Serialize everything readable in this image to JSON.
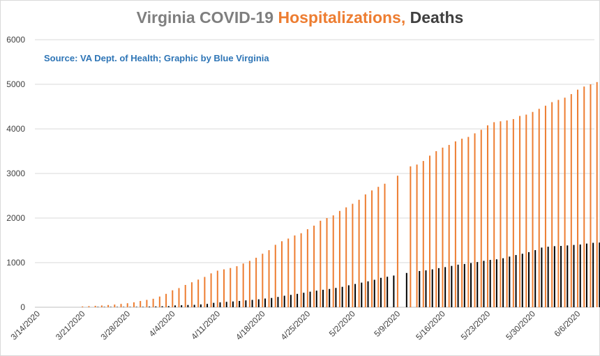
{
  "title_parts": {
    "part1": "Virginia COVID-19 ",
    "part2": "Hospitalizations,",
    "part3": " Deaths"
  },
  "subtitle": "Source: VA Dept. of Health; Graphic by Blue Virginia",
  "colors": {
    "title_gray": "#7f7f7f",
    "title_orange": "#ed7d31",
    "title_dark": "#404040",
    "subtitle_blue": "#2e75b6",
    "hospitalizations": "#ed7d31",
    "deaths": "#000000",
    "grid": "#d9d9d9"
  },
  "chart_data": {
    "type": "bar",
    "title": "Virginia COVID-19 Hospitalizations, Deaths",
    "subtitle": "Source: VA Dept. of Health; Graphic by Blue Virginia",
    "xlabel": "",
    "ylabel": "",
    "ylim": [
      0,
      6000
    ],
    "yticks": [
      0,
      1000,
      2000,
      3000,
      4000,
      5000,
      6000
    ],
    "grid": true,
    "legend": "none",
    "x_start": "2020-03-14",
    "x_end": "2020-06-08",
    "xtick_labels": [
      "3/14/2020",
      "3/21/2020",
      "3/28/2020",
      "4/4/2020",
      "4/11/2020",
      "4/18/2020",
      "4/25/2020",
      "5/2/2020",
      "5/9/2020",
      "5/16/2020",
      "5/23/2020",
      "5/30/2020",
      "6/6/2020"
    ],
    "series": [
      {
        "color": "#ed7d31",
        "points": [
          [
            "2020-03-21",
            18
          ],
          [
            "2020-03-22",
            25
          ],
          [
            "2020-03-23",
            32
          ],
          [
            "2020-03-24",
            40
          ],
          [
            "2020-03-25",
            50
          ],
          [
            "2020-03-26",
            60
          ],
          [
            "2020-03-27",
            75
          ],
          [
            "2020-03-28",
            90
          ],
          [
            "2020-03-29",
            110
          ],
          [
            "2020-03-30",
            140
          ],
          [
            "2020-03-31",
            165
          ],
          [
            "2020-04-01",
            190
          ],
          [
            "2020-04-02",
            240
          ],
          [
            "2020-04-03",
            300
          ],
          [
            "2020-04-04",
            380
          ],
          [
            "2020-04-05",
            430
          ],
          [
            "2020-04-06",
            500
          ],
          [
            "2020-04-07",
            560
          ],
          [
            "2020-04-08",
            620
          ],
          [
            "2020-04-09",
            680
          ],
          [
            "2020-04-10",
            760
          ],
          [
            "2020-04-11",
            820
          ],
          [
            "2020-04-12",
            850
          ],
          [
            "2020-04-13",
            880
          ],
          [
            "2020-04-14",
            920
          ],
          [
            "2020-04-15",
            980
          ],
          [
            "2020-04-16",
            1040
          ],
          [
            "2020-04-17",
            1110
          ],
          [
            "2020-04-18",
            1200
          ],
          [
            "2020-04-19",
            1280
          ],
          [
            "2020-04-20",
            1400
          ],
          [
            "2020-04-21",
            1480
          ],
          [
            "2020-04-22",
            1540
          ],
          [
            "2020-04-23",
            1610
          ],
          [
            "2020-04-24",
            1660
          ],
          [
            "2020-04-25",
            1750
          ],
          [
            "2020-04-26",
            1830
          ],
          [
            "2020-04-27",
            1940
          ],
          [
            "2020-04-28",
            2000
          ],
          [
            "2020-04-29",
            2060
          ],
          [
            "2020-04-30",
            2160
          ],
          [
            "2020-05-01",
            2240
          ],
          [
            "2020-05-02",
            2320
          ],
          [
            "2020-05-03",
            2410
          ],
          [
            "2020-05-04",
            2530
          ],
          [
            "2020-05-05",
            2620
          ],
          [
            "2020-05-06",
            2700
          ],
          [
            "2020-05-07",
            2770
          ],
          [
            "2020-05-09",
            2950
          ],
          [
            "2020-05-11",
            3160
          ],
          [
            "2020-05-12",
            3200
          ],
          [
            "2020-05-13",
            3280
          ],
          [
            "2020-05-14",
            3400
          ],
          [
            "2020-05-15",
            3500
          ],
          [
            "2020-05-16",
            3580
          ],
          [
            "2020-05-17",
            3640
          ],
          [
            "2020-05-18",
            3720
          ],
          [
            "2020-05-19",
            3780
          ],
          [
            "2020-05-20",
            3820
          ],
          [
            "2020-05-21",
            3900
          ],
          [
            "2020-05-22",
            3980
          ],
          [
            "2020-05-23",
            4080
          ],
          [
            "2020-05-24",
            4150
          ],
          [
            "2020-05-25",
            4170
          ],
          [
            "2020-05-26",
            4190
          ],
          [
            "2020-05-27",
            4220
          ],
          [
            "2020-05-28",
            4290
          ],
          [
            "2020-05-29",
            4320
          ],
          [
            "2020-05-30",
            4380
          ],
          [
            "2020-05-31",
            4450
          ],
          [
            "2020-06-01",
            4520
          ],
          [
            "2020-06-02",
            4600
          ],
          [
            "2020-06-03",
            4650
          ],
          [
            "2020-06-04",
            4700
          ],
          [
            "2020-06-05",
            4780
          ],
          [
            "2020-06-06",
            4880
          ],
          [
            "2020-06-07",
            4950
          ],
          [
            "2020-06-08",
            5000
          ],
          [
            "2020-06-09",
            5050
          ],
          [
            "2020-06-10",
            5100
          ]
        ]
      },
      {
        "color": "#000000",
        "points": [
          [
            "2020-03-23",
            2
          ],
          [
            "2020-03-24",
            2
          ],
          [
            "2020-03-25",
            3
          ],
          [
            "2020-03-26",
            3
          ],
          [
            "2020-03-27",
            6
          ],
          [
            "2020-03-28",
            8
          ],
          [
            "2020-03-29",
            9
          ],
          [
            "2020-03-30",
            9
          ],
          [
            "2020-03-31",
            14
          ],
          [
            "2020-04-01",
            17
          ],
          [
            "2020-04-02",
            22
          ],
          [
            "2020-04-03",
            25
          ],
          [
            "2020-04-04",
            41
          ],
          [
            "2020-04-05",
            45
          ],
          [
            "2020-04-06",
            51
          ],
          [
            "2020-04-07",
            54
          ],
          [
            "2020-04-08",
            63
          ],
          [
            "2020-04-09",
            75
          ],
          [
            "2020-04-10",
            99
          ],
          [
            "2020-04-11",
            109
          ],
          [
            "2020-04-12",
            121
          ],
          [
            "2020-04-13",
            130
          ],
          [
            "2020-04-14",
            141
          ],
          [
            "2020-04-15",
            154
          ],
          [
            "2020-04-16",
            165
          ],
          [
            "2020-04-17",
            178
          ],
          [
            "2020-04-18",
            195
          ],
          [
            "2020-04-19",
            208
          ],
          [
            "2020-04-20",
            231
          ],
          [
            "2020-04-21",
            258
          ],
          [
            "2020-04-22",
            277
          ],
          [
            "2020-04-23",
            300
          ],
          [
            "2020-04-24",
            325
          ],
          [
            "2020-04-25",
            349
          ],
          [
            "2020-04-26",
            372
          ],
          [
            "2020-04-27",
            392
          ],
          [
            "2020-04-28",
            410
          ],
          [
            "2020-04-29",
            433
          ],
          [
            "2020-04-30",
            458
          ],
          [
            "2020-05-01",
            492
          ],
          [
            "2020-05-02",
            522
          ],
          [
            "2020-05-03",
            552
          ],
          [
            "2020-05-04",
            581
          ],
          [
            "2020-05-05",
            616
          ],
          [
            "2020-05-06",
            660
          ],
          [
            "2020-05-07",
            684
          ],
          [
            "2020-05-08",
            711
          ],
          [
            "2020-05-10",
            769
          ],
          [
            "2020-05-12",
            812
          ],
          [
            "2020-05-13",
            827
          ],
          [
            "2020-05-14",
            850
          ],
          [
            "2020-05-15",
            877
          ],
          [
            "2020-05-16",
            900
          ],
          [
            "2020-05-17",
            927
          ],
          [
            "2020-05-18",
            955
          ],
          [
            "2020-05-19",
            970
          ],
          [
            "2020-05-20",
            991
          ],
          [
            "2020-05-21",
            1014
          ],
          [
            "2020-05-22",
            1041
          ],
          [
            "2020-05-23",
            1062
          ],
          [
            "2020-05-24",
            1075
          ],
          [
            "2020-05-25",
            1099
          ],
          [
            "2020-05-26",
            1136
          ],
          [
            "2020-05-27",
            1171
          ],
          [
            "2020-05-28",
            1200
          ],
          [
            "2020-05-29",
            1236
          ],
          [
            "2020-05-30",
            1281
          ],
          [
            "2020-05-31",
            1338
          ],
          [
            "2020-06-01",
            1358
          ],
          [
            "2020-06-02",
            1370
          ],
          [
            "2020-06-03",
            1375
          ],
          [
            "2020-06-04",
            1386
          ],
          [
            "2020-06-05",
            1397
          ],
          [
            "2020-06-06",
            1407
          ],
          [
            "2020-06-07",
            1428
          ],
          [
            "2020-06-08",
            1445
          ],
          [
            "2020-06-09",
            1450
          ],
          [
            "2020-06-10",
            1460
          ]
        ]
      }
    ]
  }
}
